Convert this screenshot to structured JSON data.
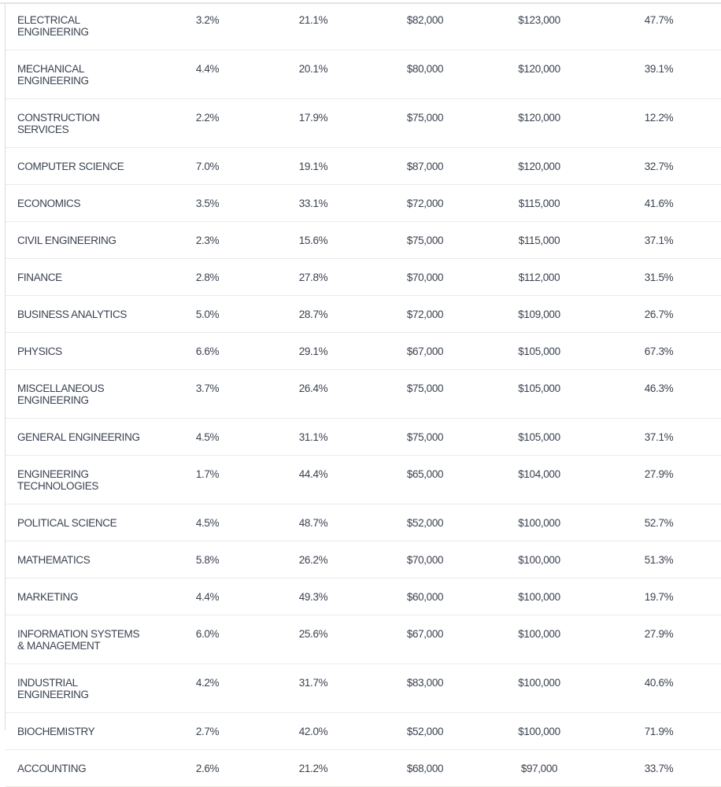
{
  "table": {
    "rows": [
      [
        "ELECTRICAL ENGINEERING",
        "3.2%",
        "21.1%",
        "$82,000",
        "$123,000",
        "47.7%"
      ],
      [
        "MECHANICAL ENGINEERING",
        "4.4%",
        "20.1%",
        "$80,000",
        "$120,000",
        "39.1%"
      ],
      [
        "CONSTRUCTION SERVICES",
        "2.2%",
        "17.9%",
        "$75,000",
        "$120,000",
        "12.2%"
      ],
      [
        "COMPUTER SCIENCE",
        "7.0%",
        "19.1%",
        "$87,000",
        "$120,000",
        "32.7%"
      ],
      [
        "ECONOMICS",
        "3.5%",
        "33.1%",
        "$72,000",
        "$115,000",
        "41.6%"
      ],
      [
        "CIVIL ENGINEERING",
        "2.3%",
        "15.6%",
        "$75,000",
        "$115,000",
        "37.1%"
      ],
      [
        "FINANCE",
        "2.8%",
        "27.8%",
        "$70,000",
        "$112,000",
        "31.5%"
      ],
      [
        "BUSINESS ANALYTICS",
        "5.0%",
        "28.7%",
        "$72,000",
        "$109,000",
        "26.7%"
      ],
      [
        "PHYSICS",
        "6.6%",
        "29.1%",
        "$67,000",
        "$105,000",
        "67.3%"
      ],
      [
        "MISCELLANEOUS ENGINEERING",
        "3.7%",
        "26.4%",
        "$75,000",
        "$105,000",
        "46.3%"
      ],
      [
        "GENERAL ENGINEERING",
        "4.5%",
        "31.1%",
        "$75,000",
        "$105,000",
        "37.1%"
      ],
      [
        "ENGINEERING TECHNOLOGIES",
        "1.7%",
        "44.4%",
        "$65,000",
        "$104,000",
        "27.9%"
      ],
      [
        "POLITICAL SCIENCE",
        "4.5%",
        "48.7%",
        "$52,000",
        "$100,000",
        "52.7%"
      ],
      [
        "MATHEMATICS",
        "5.8%",
        "26.2%",
        "$70,000",
        "$100,000",
        "51.3%"
      ],
      [
        "MARKETING",
        "4.4%",
        "49.3%",
        "$60,000",
        "$100,000",
        "19.7%"
      ],
      [
        "INFORMATION SYSTEMS & MANAGEMENT",
        "6.0%",
        "25.6%",
        "$67,000",
        "$100,000",
        "27.9%"
      ],
      [
        "INDUSTRIAL ENGINEERING",
        "4.2%",
        "31.7%",
        "$83,000",
        "$100,000",
        "40.6%"
      ],
      [
        "BIOCHEMISTRY",
        "2.7%",
        "42.0%",
        "$52,000",
        "$100,000",
        "71.9%"
      ],
      [
        "ACCOUNTING",
        "2.6%",
        "21.2%",
        "$68,000",
        "$97,000",
        "33.7%"
      ]
    ]
  }
}
